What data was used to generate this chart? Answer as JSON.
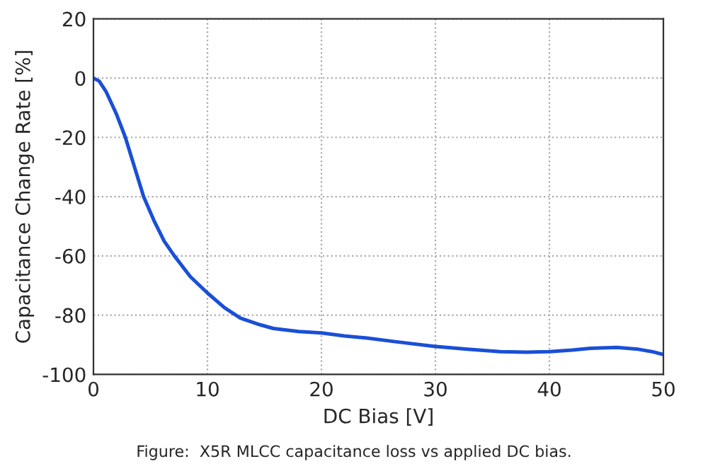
{
  "chart_data": {
    "type": "line",
    "xlabel": "DC Bias [V]",
    "ylabel": "Capacitance Change Rate [%]",
    "annotations": [
      "Figure:  X5R MLCC capacitance loss vs applied DC bias."
    ],
    "x": [
      0,
      0.5,
      1.1,
      2,
      2.8,
      3.6,
      4.4,
      5.3,
      6.2,
      7.1,
      8.5,
      10,
      11.5,
      12.9,
      14.4,
      15.8,
      18,
      20,
      22,
      24,
      26.6,
      29.9,
      32.8,
      35.7,
      38,
      40,
      42,
      43.6,
      45.9,
      47.8,
      49,
      50
    ],
    "series": [
      {
        "color": "#1a4fd6",
        "values": [
          0,
          -1,
          -4.5,
          -12,
          -20,
          -30,
          -40,
          -48,
          -55,
          -60,
          -67,
          -72.5,
          -77.5,
          -81,
          -83,
          -84.5,
          -85.5,
          -86,
          -87,
          -87.7,
          -89,
          -90.5,
          -91.5,
          -92.3,
          -92.5,
          -92.3,
          -91.8,
          -91.2,
          -90.9,
          -91.5,
          -92.3,
          -93.3
        ]
      }
    ],
    "xlim": [
      0,
      50
    ],
    "xticks": [
      0,
      10,
      20,
      30,
      40,
      50
    ],
    "ylim": [
      -100,
      20
    ],
    "yticks": [
      -100,
      -80,
      -60,
      -40,
      -20,
      0,
      20
    ],
    "grid": true,
    "line_style": "solid",
    "marker": "none"
  }
}
